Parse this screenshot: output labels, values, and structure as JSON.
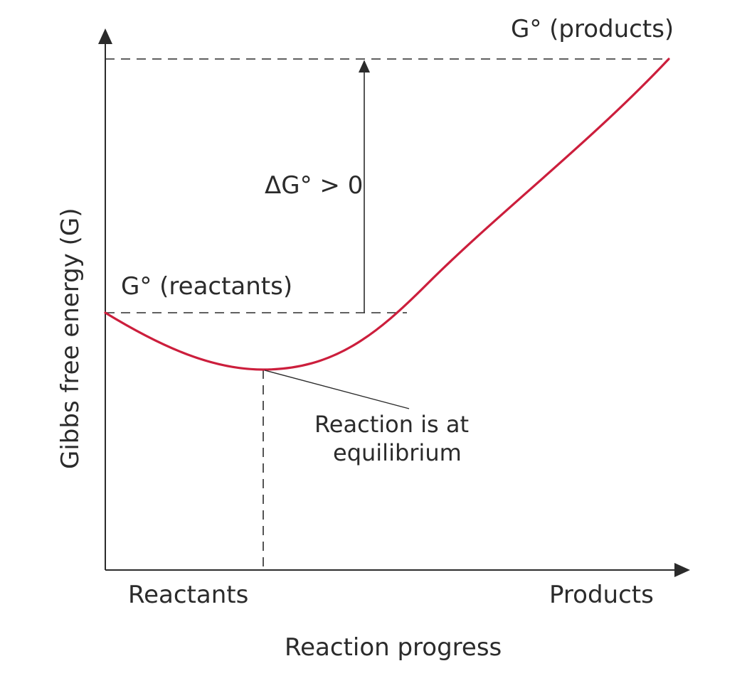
{
  "diagram": {
    "y_axis_label": "Gibbs free energy (G)",
    "x_axis_label": "Reaction progress",
    "x_start_label": "Reactants",
    "x_end_label": "Products",
    "g_reactants_label": "G° (reactants)",
    "g_products_label": "G° (products)",
    "delta_g_label": "ΔG° > 0",
    "equilibrium_label_line1": "Reaction is at",
    "equilibrium_label_line2": "equilibrium",
    "curve_color": "#cc1e3c"
  }
}
